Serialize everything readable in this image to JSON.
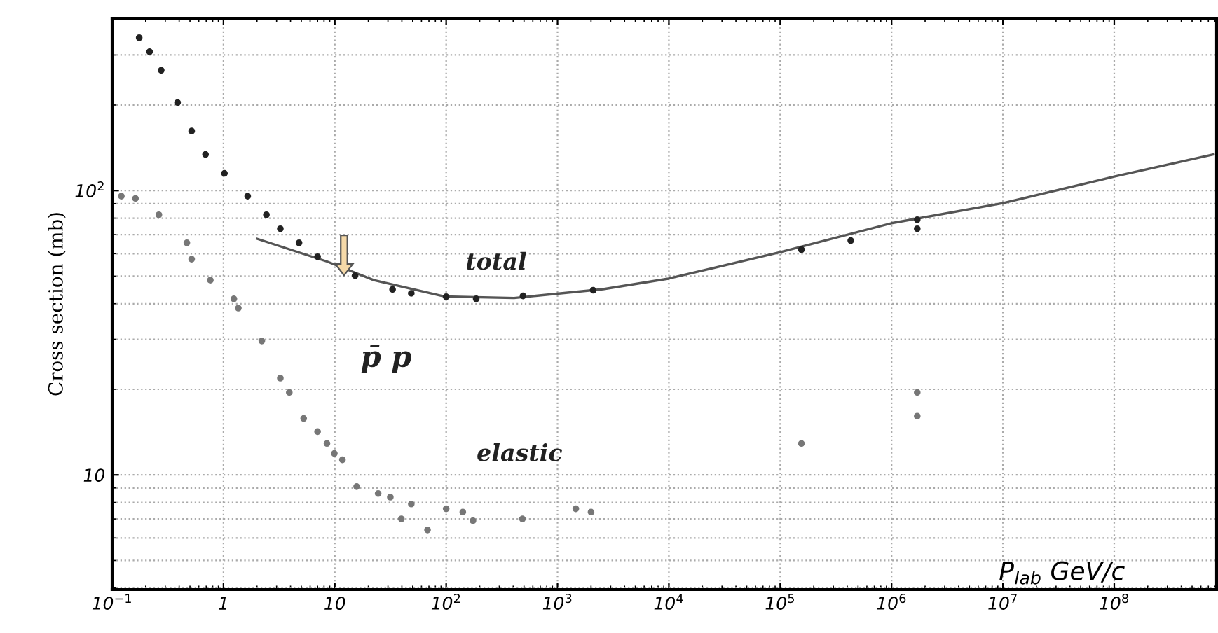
{
  "chart_data": {
    "type": "scatter",
    "xlabel": "P$_{lab}$ GeV/c",
    "ylabel": "Cross section (mb)",
    "log": "xy",
    "grid": true,
    "marker": "circle",
    "xlim": [
      0.1,
      830000000
    ],
    "ylim": [
      3.95,
      404
    ],
    "xticks": [
      {
        "value": 0.1,
        "label": "10$^{−1}$"
      },
      1,
      10,
      {
        "value": 100,
        "label": "10$^{2}$"
      },
      {
        "value": 1000,
        "label": "10$^{3}$"
      },
      {
        "value": 10000,
        "label": "10$^{4}$"
      },
      {
        "value": 100000,
        "label": "10$^{5}$"
      },
      {
        "value": 1000000,
        "label": "10$^{6}$"
      },
      {
        "value": 10000000,
        "label": "10$^{7}$"
      },
      {
        "value": 100000000,
        "label": "10$^{8}$"
      }
    ],
    "yticks": [
      10,
      {
        "value": 100,
        "label": "10$^{2}$"
      }
    ],
    "annotations": [
      "p̄ p"
    ],
    "series": [
      {
        "name": "total",
        "color": "#222222",
        "x": [
          0.175,
          0.217,
          0.276,
          0.387,
          0.518,
          0.69,
          1.02,
          1.65,
          2.43,
          3.24,
          4.77,
          7.0,
          15.2,
          33,
          48.6,
          100,
          186,
          490,
          2090,
          155000,
          430000,
          1700000,
          1700000
        ],
        "values": [
          345,
          308,
          265,
          204,
          162,
          134,
          115,
          95.6,
          82.2,
          73.4,
          65.5,
          58.5,
          50.2,
          44.9,
          43.5,
          42.3,
          41.6,
          42.6,
          44.6,
          62,
          66.7,
          73.4,
          79
        ]
      },
      {
        "type": "line",
        "color": "#555555",
        "marker": "none",
        "x": [
          2.0,
          8.5,
          22.4,
          96,
          407,
          2570,
          9900,
          100000,
          1000000,
          10000000,
          100000000,
          780000000
        ],
        "values": [
          67.7,
          56.3,
          48.4,
          42.4,
          41.9,
          45,
          49,
          60.7,
          76.8,
          90.3,
          112,
          134
        ]
      },
      {
        "name": "elastic",
        "color": "#777777",
        "x": [
          0.121,
          0.162,
          0.263,
          0.469,
          0.518,
          0.762,
          1.24,
          1.36,
          2.21,
          3.24,
          3.9,
          5.25,
          7.0,
          8.5,
          9.9,
          11.7,
          15.7,
          24.5,
          31.5,
          39.6,
          48.6,
          68,
          100,
          141,
          174,
          484,
          1460,
          2000,
          155000,
          1700000,
          1700000
        ],
        "values": [
          95.6,
          93.8,
          82.2,
          65.5,
          57.4,
          48.4,
          41.6,
          38.6,
          29.6,
          21.9,
          19.5,
          15.8,
          14.2,
          12.9,
          11.9,
          11.3,
          9.1,
          8.6,
          8.35,
          7.0,
          7.9,
          6.4,
          7.6,
          7.4,
          6.9,
          7.0,
          7.6,
          7.4,
          12.9,
          19.5,
          16.1
        ]
      }
    ]
  }
}
